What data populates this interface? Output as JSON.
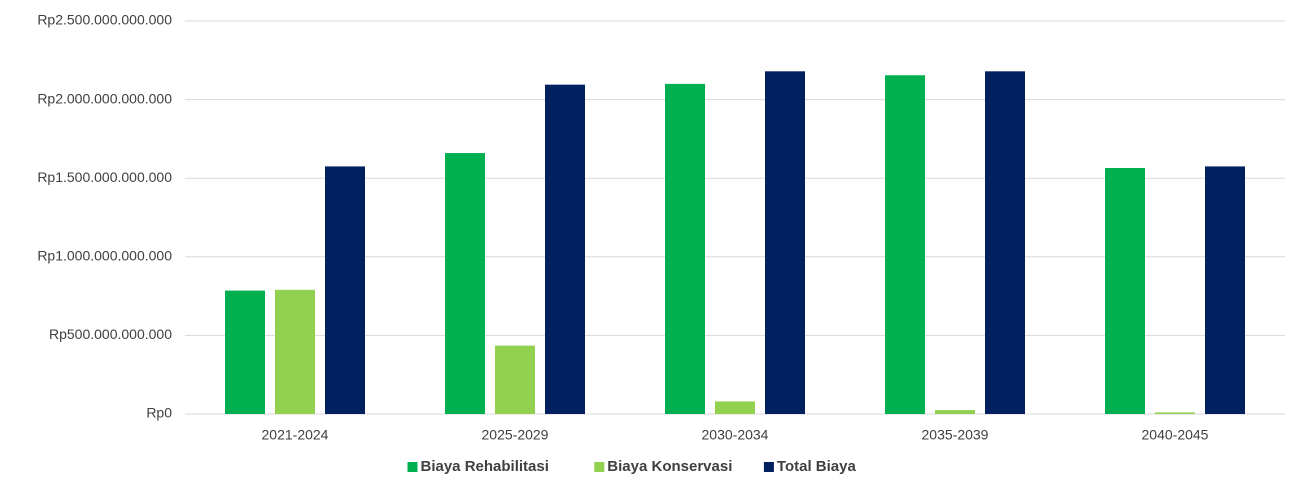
{
  "chart_data": {
    "type": "bar",
    "categories": [
      "2021-2024",
      "2025-2029",
      "2030-2034",
      "2035-2039",
      "2040-2045"
    ],
    "series": [
      {
        "name": "Biaya Rehabilitasi",
        "color": "#00b050",
        "values": [
          785000000000,
          1660000000000,
          2100000000000,
          2155000000000,
          1565000000000
        ]
      },
      {
        "name": "Biaya Konservasi",
        "color": "#92d050",
        "values": [
          790000000000,
          435000000000,
          80000000000,
          25000000000,
          10000000000
        ]
      },
      {
        "name": "Total Biaya",
        "color": "#002060",
        "values": [
          1575000000000,
          2095000000000,
          2180000000000,
          2180000000000,
          1575000000000
        ]
      }
    ],
    "ylim": [
      0,
      2500000000000
    ],
    "yticks": [
      {
        "value": 0,
        "label": "Rp0"
      },
      {
        "value": 500000000000,
        "label": "Rp500.000.000.000"
      },
      {
        "value": 1000000000000,
        "label": "Rp1.000.000.000.000"
      },
      {
        "value": 1500000000000,
        "label": "Rp1.500.000.000.000"
      },
      {
        "value": 2000000000000,
        "label": "Rp2.000.000.000.000"
      },
      {
        "value": 2500000000000,
        "label": "Rp2.500.000.000.000"
      }
    ],
    "grid": true,
    "legend": "bottom"
  }
}
